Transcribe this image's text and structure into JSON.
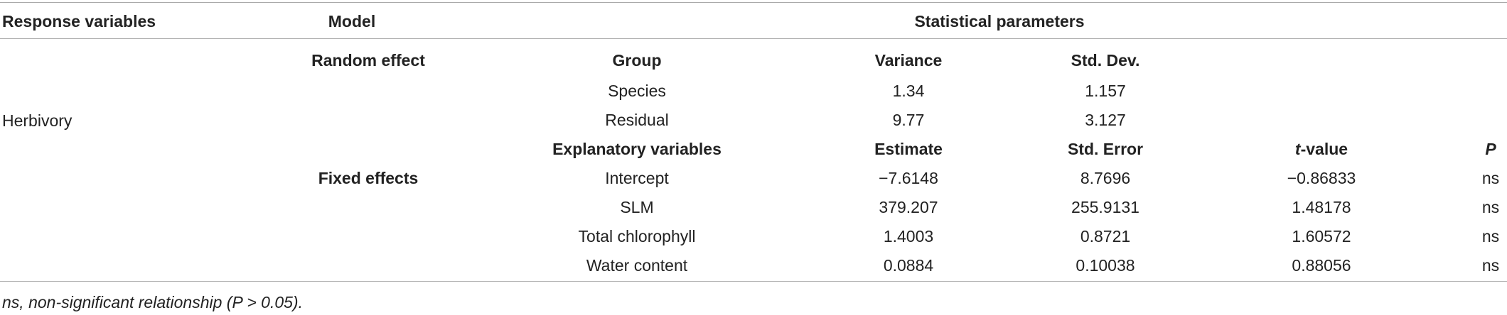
{
  "header": {
    "response_variables": "Response variables",
    "model": "Model",
    "statistical_parameters": "Statistical parameters"
  },
  "response": "Herbivory",
  "random_effect": {
    "label": "Random effect",
    "columns": [
      "Group",
      "Variance",
      "Std. Dev."
    ],
    "rows": [
      [
        "Species",
        "1.34",
        "1.157"
      ],
      [
        "Residual",
        "9.77",
        "3.127"
      ]
    ]
  },
  "fixed_effects": {
    "label": "Fixed effects",
    "columns": [
      "Explanatory variables",
      "Estimate",
      "Std. Error",
      "t-value",
      "P"
    ],
    "rows": [
      [
        "Intercept",
        "−7.6148",
        "8.7696",
        "−0.86833",
        "ns"
      ],
      [
        "SLM",
        "379.207",
        "255.9131",
        "1.48178",
        "ns"
      ],
      [
        "Total chlorophyll",
        "1.4003",
        "0.8721",
        "1.60572",
        "ns"
      ],
      [
        "Water content",
        "0.0884",
        "0.10038",
        "0.88056",
        "ns"
      ]
    ]
  },
  "footnote": "ns, non-significant relationship (P > 0.05)."
}
